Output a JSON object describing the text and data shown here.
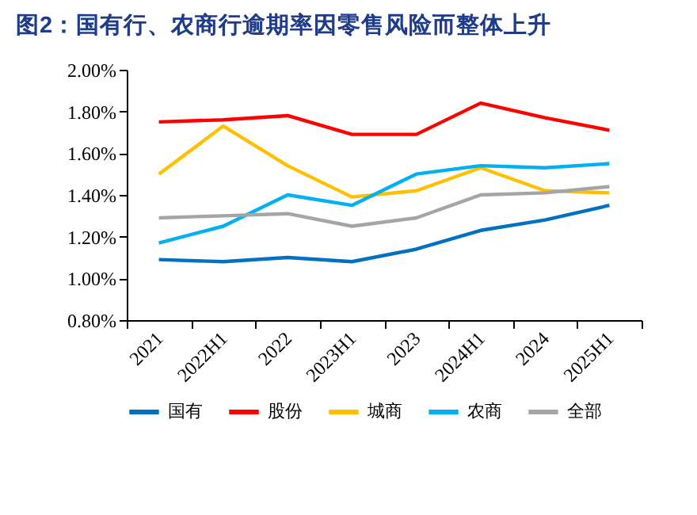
{
  "chart_data": {
    "type": "line",
    "title": "图2：国有行、农商行逾期率因零售风险而整体上升",
    "categories": [
      "2021",
      "2022H1",
      "2022",
      "2023H1",
      "2023",
      "2024H1",
      "2024",
      "2025H1"
    ],
    "series": [
      {
        "name": "国有",
        "color": "#0070c0",
        "values": [
          1.09,
          1.08,
          1.1,
          1.08,
          1.14,
          1.23,
          1.28,
          1.35
        ]
      },
      {
        "name": "股份",
        "color": "#ff0000",
        "values": [
          1.75,
          1.76,
          1.78,
          1.69,
          1.69,
          1.84,
          1.77,
          1.71
        ]
      },
      {
        "name": "城商",
        "color": "#ffc000",
        "values": [
          1.5,
          1.73,
          1.54,
          1.39,
          1.42,
          1.53,
          1.42,
          1.41
        ]
      },
      {
        "name": "农商",
        "color": "#00b0f0",
        "values": [
          1.17,
          1.25,
          1.4,
          1.35,
          1.5,
          1.54,
          1.53,
          1.55
        ]
      },
      {
        "name": "全部",
        "color": "#a5a5a5",
        "values": [
          1.29,
          1.3,
          1.31,
          1.25,
          1.29,
          1.4,
          1.41,
          1.44
        ]
      }
    ],
    "ylim": [
      0.8,
      2.0
    ],
    "yticks": [
      {
        "value": 0.8,
        "label": "0.80%"
      },
      {
        "value": 1.0,
        "label": "1.00%"
      },
      {
        "value": 1.2,
        "label": "1.20%"
      },
      {
        "value": 1.4,
        "label": "1.40%"
      },
      {
        "value": 1.6,
        "label": "1.60%"
      },
      {
        "value": 1.8,
        "label": "1.80%"
      },
      {
        "value": 2.0,
        "label": "2.00%"
      }
    ],
    "grid": false,
    "legend": "bottom",
    "line_style": "solid"
  }
}
